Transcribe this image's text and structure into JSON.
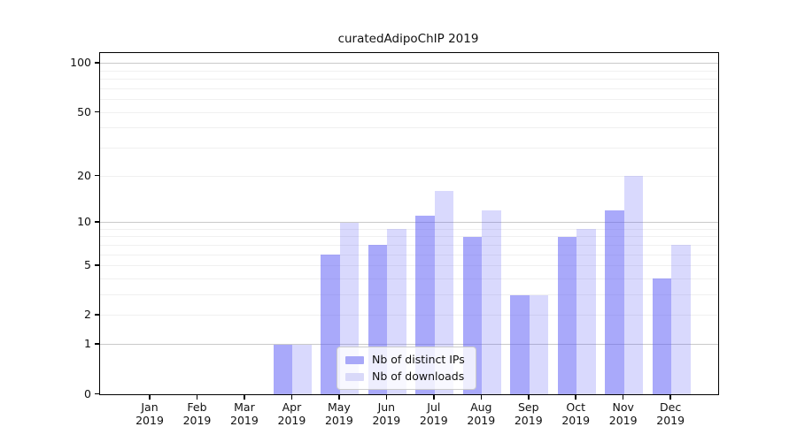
{
  "title": "curatedAdipoChIP 2019",
  "chart_data": {
    "type": "bar",
    "title": "curatedAdipoChIP 2019",
    "categories": [
      "Jan",
      "Feb",
      "Mar",
      "Apr",
      "May",
      "Jun",
      "Jul",
      "Aug",
      "Sep",
      "Oct",
      "Nov",
      "Dec"
    ],
    "year_label": "2019",
    "series": [
      {
        "name": "Nb of distinct IPs",
        "color": "#a8a8f8",
        "fill_rgba": "rgba(90,90,245,0.52)",
        "values": [
          0,
          0,
          0,
          1,
          6,
          7,
          11,
          8,
          3,
          8,
          12,
          4
        ]
      },
      {
        "name": "Nb of downloads",
        "color": "#d9d9f9",
        "fill_rgba": "rgba(90,90,245,0.23)",
        "values": [
          0,
          0,
          0,
          1,
          10,
          9,
          16,
          12,
          3,
          9,
          20,
          7
        ]
      }
    ],
    "xlabel": "",
    "ylabel": "",
    "yscale": "log1p",
    "ylim": [
      0,
      116
    ],
    "yticks": [
      0,
      1,
      2,
      5,
      10,
      20,
      50,
      100
    ],
    "major_gridlines": [
      1,
      10,
      100
    ],
    "minor_gridlines": [
      2,
      3,
      4,
      5,
      6,
      7,
      8,
      9,
      20,
      30,
      40,
      50,
      60,
      70,
      80,
      90
    ],
    "grid": true,
    "grid_major_color": "#c9c9c9",
    "grid_minor_color": "#f0f0f0",
    "legend_position": "lower center"
  }
}
